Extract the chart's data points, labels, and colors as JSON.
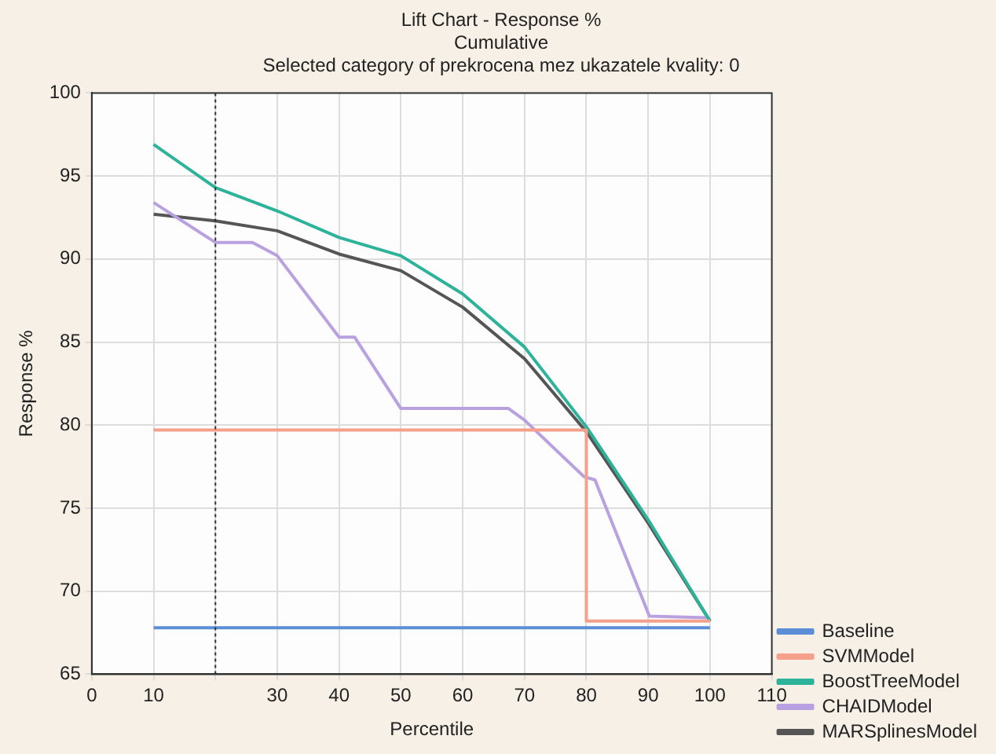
{
  "chart_data": {
    "type": "line",
    "title": "Lift Chart - Response %",
    "subtitle": "Cumulative\nSelected category of prekrocena mez ukazatele kvality: 0",
    "xlabel": "Percentile",
    "ylabel": "Response %",
    "xlim": [
      0,
      110
    ],
    "xticks": [
      0,
      10,
      {
        "value": 20,
        "label": null
      },
      30,
      40,
      50,
      60,
      70,
      80,
      90,
      100,
      110
    ],
    "ylim": [
      65,
      100
    ],
    "yticks": [
      65,
      70,
      75,
      80,
      85,
      90,
      95,
      100
    ],
    "grid": true,
    "legend": "bottom right",
    "marker": "none",
    "line_style": "solid",
    "ref_lines": [
      {
        "axis": "x",
        "value": 20,
        "color": "#333333",
        "line_style": "dotted"
      }
    ],
    "series": [
      {
        "name": "Baseline",
        "color": "#5b8ed6",
        "x": [
          10,
          100
        ],
        "values": [
          67.8,
          67.8
        ]
      },
      {
        "name": "SVMModel",
        "color": "#f5a08a",
        "x": [
          10,
          80,
          80,
          100
        ],
        "values": [
          79.7,
          79.7,
          68.2,
          68.2
        ]
      },
      {
        "name": "BoostTreeModel",
        "color": "#2db39a",
        "x": [
          10,
          20,
          30,
          40,
          50,
          60,
          70,
          80,
          90,
          100
        ],
        "values": [
          96.9,
          94.3,
          92.9,
          91.3,
          90.2,
          87.9,
          84.7,
          79.9,
          74.3,
          68.2
        ]
      },
      {
        "name": "CHAIDModel",
        "color": "#b9a0e0",
        "x": [
          10,
          20,
          26,
          30,
          40,
          42.5,
          50,
          67.4,
          70,
          79.6,
          81.4,
          90.2,
          99.4
        ],
        "values": [
          93.4,
          91,
          91,
          90.2,
          85.3,
          85.3,
          81,
          81,
          80.3,
          76.9,
          76.7,
          68.5,
          68.4
        ]
      },
      {
        "name": "MARSplinesModel",
        "color": "#555555",
        "x": [
          10,
          20,
          30,
          40,
          50,
          60,
          70,
          80,
          90,
          100
        ],
        "values": [
          92.7,
          92.3,
          91.7,
          90.3,
          89.3,
          87.1,
          84,
          79.6,
          74.1,
          68.2
        ]
      }
    ]
  }
}
